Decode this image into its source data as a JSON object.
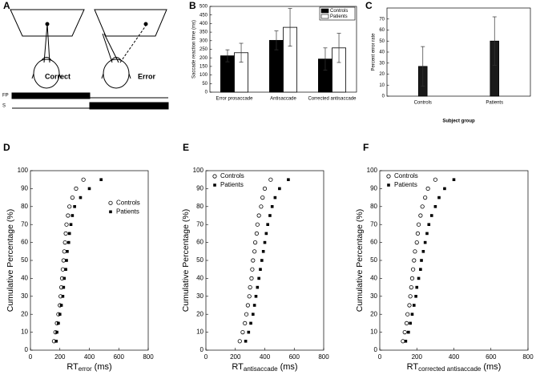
{
  "diagram": {
    "label": "A",
    "correct": "Correct",
    "error": "Error",
    "fp": "FP",
    "s": "S"
  },
  "chart_data": [
    {
      "type": "bar",
      "label": "B",
      "ylabel": "Saccade reaction time (ms)",
      "categories": [
        "Error prosaccade",
        "Antisaccade",
        "Corrected antisaccade"
      ],
      "series": [
        {
          "name": "Controls",
          "color": "#000000",
          "values": [
            212,
            302,
            193
          ],
          "errors": [
            35,
            55,
            65
          ]
        },
        {
          "name": "Patients",
          "color": "#ffffff",
          "values": [
            230,
            378,
            258
          ],
          "errors": [
            55,
            110,
            85
          ]
        }
      ],
      "ylim": [
        0,
        500
      ],
      "yticks": [
        0,
        50,
        100,
        150,
        200,
        250,
        300,
        350,
        400,
        450,
        500
      ],
      "legend": "upper right"
    },
    {
      "type": "bar",
      "label": "C",
      "ylabel": "Percent error rate",
      "xlabel": "Subject group",
      "categories": [
        "Controls",
        "Patients"
      ],
      "series": [
        {
          "color": "#1a1a1a",
          "values": [
            27,
            50
          ],
          "errors": [
            18,
            22
          ]
        }
      ],
      "ylim": [
        0,
        80
      ],
      "yticks": [
        0,
        10,
        20,
        30,
        40,
        50,
        60,
        70
      ]
    },
    {
      "type": "scatter",
      "label": "D",
      "ylabel": "Cumulative Percentage (%)",
      "xlabel": {
        "main": "RT",
        "sub": "error",
        "unit": "(ms)"
      },
      "y": [
        5,
        10,
        15,
        20,
        25,
        30,
        35,
        40,
        45,
        50,
        55,
        60,
        65,
        70,
        75,
        80,
        85,
        90,
        95
      ],
      "series": [
        {
          "name": "Controls",
          "marker": "open-circle",
          "color": "#000000",
          "x": [
            160,
            170,
            180,
            190,
            200,
            205,
            210,
            215,
            220,
            225,
            230,
            235,
            240,
            245,
            255,
            265,
            285,
            310,
            360
          ]
        },
        {
          "name": "Patients",
          "marker": "filled-square",
          "color": "#000000",
          "x": [
            175,
            180,
            190,
            200,
            210,
            220,
            225,
            230,
            240,
            245,
            250,
            260,
            265,
            275,
            285,
            300,
            340,
            400,
            480
          ]
        }
      ],
      "xlim": [
        0,
        800
      ],
      "xticks": [
        0,
        200,
        400,
        600,
        800
      ],
      "ylim": [
        0,
        100
      ],
      "yticks": [
        0,
        10,
        20,
        30,
        40,
        50,
        60,
        70,
        80,
        90,
        100
      ],
      "legend": "right"
    },
    {
      "type": "scatter",
      "label": "E",
      "ylabel": "Cumulative Percentage (%)",
      "xlabel": {
        "main": "RT",
        "sub": "antisaccade",
        "unit": "(ms)"
      },
      "y": [
        5,
        10,
        15,
        20,
        25,
        30,
        35,
        40,
        45,
        50,
        55,
        60,
        65,
        70,
        75,
        80,
        85,
        90,
        95
      ],
      "series": [
        {
          "name": "Controls",
          "marker": "open-circle",
          "color": "#000000",
          "x": [
            230,
            250,
            265,
            275,
            285,
            295,
            300,
            310,
            315,
            320,
            330,
            335,
            345,
            350,
            360,
            375,
            385,
            400,
            440
          ]
        },
        {
          "name": "Patients",
          "marker": "filled-square",
          "color": "#000000",
          "x": [
            270,
            290,
            305,
            320,
            330,
            340,
            350,
            360,
            370,
            380,
            390,
            400,
            410,
            420,
            435,
            450,
            470,
            500,
            560
          ]
        }
      ],
      "xlim": [
        0,
        800
      ],
      "xticks": [
        0,
        200,
        400,
        600,
        800
      ],
      "ylim": [
        0,
        100
      ],
      "yticks": [
        0,
        10,
        20,
        30,
        40,
        50,
        60,
        70,
        80,
        90,
        100
      ],
      "legend": "upper left"
    },
    {
      "type": "scatter",
      "label": "F",
      "ylabel": "Cumulative Percentage (%)",
      "xlabel": {
        "main": "RT",
        "sub": "corrected antisaccade",
        "unit": "(ms)"
      },
      "y": [
        5,
        10,
        15,
        20,
        25,
        30,
        35,
        40,
        45,
        50,
        55,
        60,
        65,
        70,
        75,
        80,
        85,
        90,
        95
      ],
      "series": [
        {
          "name": "Controls",
          "marker": "open-circle",
          "color": "#000000",
          "x": [
            125,
            135,
            145,
            150,
            160,
            165,
            170,
            175,
            180,
            185,
            190,
            200,
            205,
            210,
            220,
            230,
            245,
            260,
            300
          ]
        },
        {
          "name": "Patients",
          "marker": "filled-square",
          "color": "#000000",
          "x": [
            140,
            155,
            165,
            175,
            185,
            195,
            200,
            210,
            220,
            225,
            235,
            245,
            255,
            265,
            280,
            300,
            320,
            350,
            400
          ]
        }
      ],
      "xlim": [
        0,
        800
      ],
      "xticks": [
        0,
        200,
        400,
        600,
        800
      ],
      "ylim": [
        0,
        100
      ],
      "yticks": [
        0,
        10,
        20,
        30,
        40,
        50,
        60,
        70,
        80,
        90,
        100
      ],
      "legend": "upper left"
    }
  ]
}
